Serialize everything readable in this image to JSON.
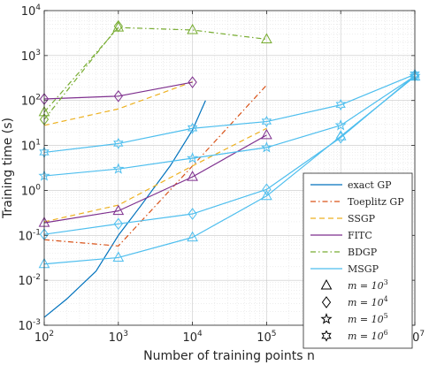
{
  "chart_data": {
    "type": "line",
    "title": "",
    "xlabel": "Number of training points n",
    "ylabel": "Training time (s)",
    "xscale": "log",
    "yscale": "log",
    "xlim": [
      100,
      10000000
    ],
    "ylim": [
      0.001,
      10000
    ],
    "grid": true,
    "legend_position": "bottom-right",
    "x_ticks": [
      {
        "value": 100,
        "base": "10",
        "exp": "2"
      },
      {
        "value": 1000,
        "base": "10",
        "exp": "3"
      },
      {
        "value": 10000,
        "base": "10",
        "exp": "4"
      },
      {
        "value": 100000,
        "base": "10",
        "exp": "5"
      },
      {
        "value": 1000000,
        "base": "10",
        "exp": "6"
      },
      {
        "value": 10000000,
        "base": "10",
        "exp": "7"
      }
    ],
    "y_ticks": [
      {
        "value": 0.001,
        "base": "10",
        "exp": "-3"
      },
      {
        "value": 0.01,
        "base": "10",
        "exp": "-2"
      },
      {
        "value": 0.1,
        "base": "10",
        "exp": "-1"
      },
      {
        "value": 1,
        "base": "10",
        "exp": "0"
      },
      {
        "value": 10,
        "base": "10",
        "exp": "1"
      },
      {
        "value": 100,
        "base": "10",
        "exp": "2"
      },
      {
        "value": 1000,
        "base": "10",
        "exp": "3"
      },
      {
        "value": 10000,
        "base": "10",
        "exp": "4"
      }
    ],
    "marker_legend": [
      {
        "marker": "triangle",
        "label_prefix": "m = 10",
        "exp": "3"
      },
      {
        "marker": "diamond",
        "label_prefix": "m = 10",
        "exp": "4"
      },
      {
        "marker": "star5",
        "label_prefix": "m = 10",
        "exp": "5"
      },
      {
        "marker": "star6",
        "label_prefix": "m = 10",
        "exp": "6"
      }
    ],
    "series": [
      {
        "name": "exact GP",
        "color": "#0072BD",
        "dash": "solid",
        "legend": true,
        "marker": "none",
        "points": [
          [
            100,
            0.0015
          ],
          [
            200,
            0.0038
          ],
          [
            500,
            0.016
          ],
          [
            1000,
            0.1
          ],
          [
            2000,
            0.45
          ],
          [
            5000,
            3.5
          ],
          [
            10000,
            22
          ],
          [
            15000,
            100
          ]
        ]
      },
      {
        "name": "Toeplitz GP",
        "color": "#D95319",
        "dash": "dashdot",
        "legend": true,
        "marker": "none",
        "points": [
          [
            100,
            0.08
          ],
          [
            1000,
            0.058
          ],
          [
            10000,
            3.5
          ],
          [
            100000,
            220
          ]
        ]
      },
      {
        "name": "SSGP",
        "color": "#EDB120",
        "dash": "dashed",
        "legend": true,
        "marker": "none",
        "points": [
          [
            100,
            28
          ],
          [
            1000,
            65
          ],
          [
            10000,
            260
          ]
        ]
      },
      {
        "name": "SSGP",
        "color": "#EDB120",
        "dash": "dashed",
        "legend": false,
        "marker": "none",
        "points": [
          [
            100,
            0.2
          ],
          [
            1000,
            0.47
          ],
          [
            10000,
            3.5
          ],
          [
            100000,
            24
          ]
        ]
      },
      {
        "name": "FITC",
        "color": "#7E2F8E",
        "dash": "solid",
        "legend": true,
        "marker": "triangle",
        "points": [
          [
            100,
            0.19
          ],
          [
            1000,
            0.35
          ],
          [
            10000,
            2.0
          ],
          [
            100000,
            17
          ]
        ]
      },
      {
        "name": "FITC",
        "color": "#7E2F8E",
        "dash": "solid",
        "legend": false,
        "marker": "diamond",
        "points": [
          [
            100,
            108
          ],
          [
            1000,
            125
          ],
          [
            10000,
            255
          ]
        ]
      },
      {
        "name": "BDGP",
        "color": "#77AC30",
        "dash": "dashdot",
        "legend": true,
        "marker": "triangle",
        "points": [
          [
            100,
            55
          ],
          [
            1000,
            4200
          ],
          [
            10000,
            3700
          ],
          [
            100000,
            2300
          ]
        ]
      },
      {
        "name": "BDGP",
        "color": "#77AC30",
        "dash": "dashdot",
        "legend": false,
        "marker": "diamond",
        "points": [
          [
            100,
            38
          ],
          [
            1000,
            4500
          ]
        ]
      },
      {
        "name": "MSGP",
        "color": "#4DBEEE",
        "dash": "solid",
        "legend": true,
        "marker": "triangle",
        "points": [
          [
            100,
            0.023
          ],
          [
            1000,
            0.032
          ],
          [
            10000,
            0.09
          ],
          [
            100000,
            0.75
          ],
          [
            1000000,
            16
          ],
          [
            10000000,
            340
          ]
        ]
      },
      {
        "name": "MSGP",
        "color": "#4DBEEE",
        "dash": "solid",
        "legend": false,
        "marker": "diamond",
        "points": [
          [
            100,
            0.105
          ],
          [
            1000,
            0.18
          ],
          [
            10000,
            0.3
          ],
          [
            100000,
            1.05
          ],
          [
            1000000,
            15
          ],
          [
            10000000,
            360
          ]
        ]
      },
      {
        "name": "MSGP",
        "color": "#4DBEEE",
        "dash": "solid",
        "legend": false,
        "marker": "star5",
        "points": [
          [
            100,
            2.1
          ],
          [
            1000,
            3.0
          ],
          [
            10000,
            5.2
          ],
          [
            100000,
            9.0
          ],
          [
            1000000,
            28
          ],
          [
            10000000,
            350
          ]
        ]
      },
      {
        "name": "MSGP",
        "color": "#4DBEEE",
        "dash": "solid",
        "legend": false,
        "marker": "star6",
        "points": [
          [
            100,
            7.0
          ],
          [
            1000,
            11
          ],
          [
            10000,
            24
          ],
          [
            100000,
            34
          ],
          [
            1000000,
            80
          ],
          [
            10000000,
            380
          ]
        ]
      }
    ]
  }
}
